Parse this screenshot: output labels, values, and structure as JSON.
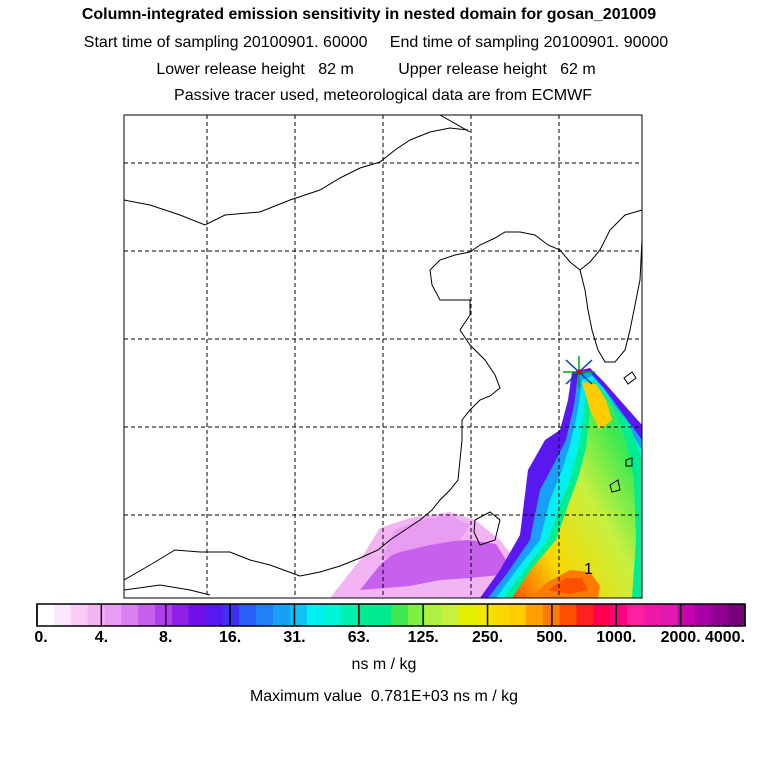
{
  "header": {
    "title": "Column-integrated emission sensitivity in nested domain for gosan_201009",
    "sampling": "Start time of sampling 20100901. 60000     End time of sampling 20100901. 90000",
    "release": "Lower release height   82 m          Upper release height   62 m",
    "tracer": "Passive tracer used, meteorological data are from ECMWF"
  },
  "map": {
    "source_marker": "station-star",
    "max_label": "1",
    "land_line_color": "#000000",
    "grid_color": "#000000"
  },
  "colorbar": {
    "tick_labels": [
      "0.",
      "4.",
      "8.",
      "16.",
      "31.",
      "63.",
      "125.",
      "250.",
      "500.",
      "1000.",
      "2000.",
      "4000."
    ],
    "colors": [
      "#ffffff",
      "#fce6fc",
      "#f7cdf7",
      "#f2b4f2",
      "#e89cf2",
      "#dc80f0",
      "#c860ee",
      "#b040ec",
      "#9020e8",
      "#7010e6",
      "#5a18f0",
      "#4030f4",
      "#2a60f8",
      "#2080f8",
      "#18a0f8",
      "#10c0f8",
      "#00f0f0",
      "#00f4d8",
      "#00f0b0",
      "#00ec90",
      "#00e890",
      "#40e850",
      "#80f040",
      "#b0f040",
      "#c8f040",
      "#e0f000",
      "#f0e800",
      "#f8d800",
      "#ffcc00",
      "#ffa000",
      "#ff7a00",
      "#ff5000",
      "#ff2020",
      "#ff0050",
      "#ff0080",
      "#ff20a0",
      "#f018a8",
      "#e018b0",
      "#c800b0",
      "#a800a8",
      "#900090",
      "#780078"
    ],
    "units": "ns m / kg",
    "max_text": "Maximum value  0.781E+03 ns m / kg"
  }
}
